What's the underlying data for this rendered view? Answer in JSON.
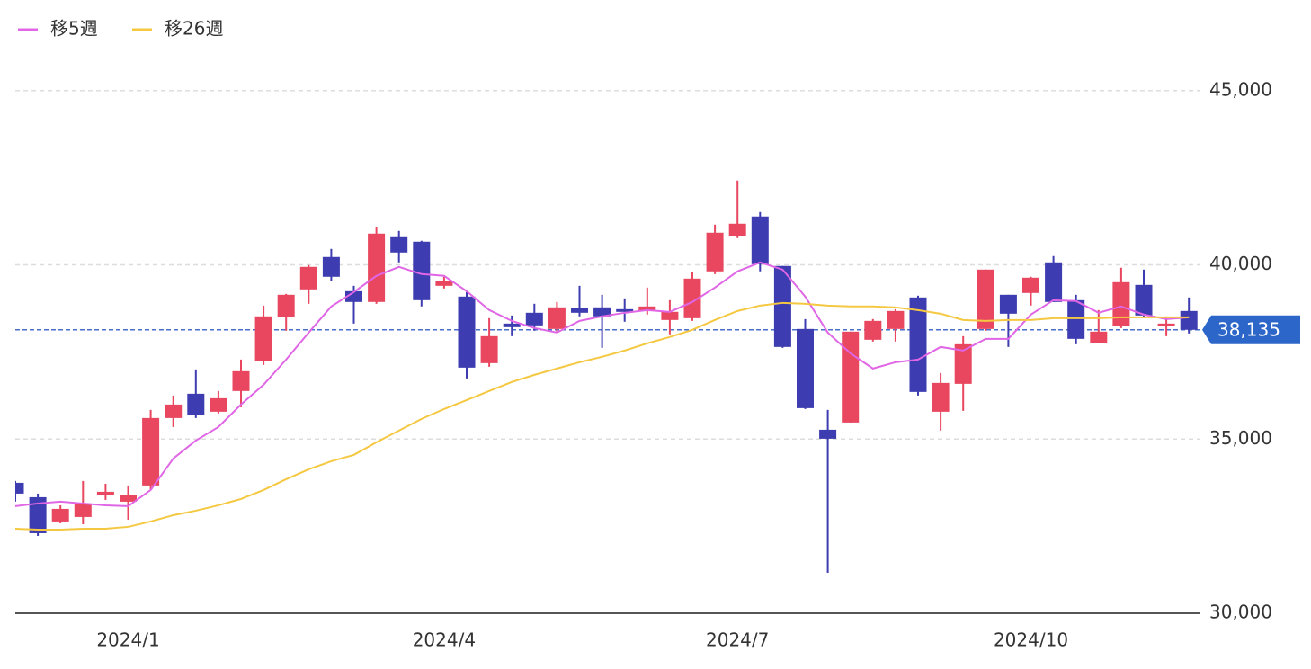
{
  "chart_data": {
    "type": "candlestick",
    "categories": [
      null,
      null,
      null,
      null,
      null,
      "2024/1",
      null,
      null,
      null,
      null,
      null,
      null,
      null,
      null,
      null,
      null,
      null,
      null,
      null,
      "2024/4",
      null,
      null,
      null,
      null,
      null,
      null,
      null,
      null,
      null,
      null,
      null,
      null,
      "2024/7",
      null,
      null,
      null,
      null,
      null,
      null,
      null,
      null,
      null,
      null,
      null,
      null,
      "2024/10",
      null,
      null,
      null,
      null,
      null,
      null,
      null
    ],
    "open": [
      33744,
      33331,
      32634,
      32763,
      33382,
      33202,
      33667,
      35603,
      36300,
      35784,
      36378,
      37230,
      38495,
      39295,
      40225,
      39243,
      38934,
      40793,
      40664,
      39398,
      39089,
      37178,
      38314,
      38624,
      38159,
      38753,
      38779,
      38727,
      38675,
      38417,
      38469,
      39812,
      40819,
      41387,
      39967,
      38159,
      35267,
      35474,
      37849,
      38159,
      39063,
      35784,
      36584,
      38159,
      39140,
      39192,
      40070,
      38985,
      37746,
      38237,
      39424,
      38237,
      38675
    ],
    "high": [
      33796,
      33434,
      33098,
      33796,
      33718,
      33667,
      35835,
      36248,
      36997,
      36378,
      37281,
      38830,
      39166,
      39992,
      40457,
      39398,
      41077,
      40974,
      40690,
      39657,
      39218,
      38469,
      38546,
      38882,
      38934,
      39398,
      39140,
      39037,
      39347,
      38985,
      39786,
      41154,
      42419,
      41516,
      39967,
      38443,
      35835,
      38082,
      38443,
      38727,
      39114,
      36894,
      37953,
      39863,
      39140,
      39657,
      40251,
      39140,
      38701,
      39915,
      39863,
      38520,
      39063
    ],
    "low": [
      33202,
      32220,
      32582,
      32556,
      33253,
      32685,
      33537,
      35345,
      35603,
      35732,
      35913,
      37126,
      38108,
      38882,
      39528,
      38314,
      38882,
      40070,
      38805,
      39321,
      36739,
      37075,
      37953,
      38108,
      38056,
      38521,
      37617,
      38366,
      38572,
      38004,
      38391,
      39734,
      40767,
      39812,
      37617,
      35861,
      31162,
      35474,
      37798,
      37798,
      36248,
      35241,
      35810,
      38108,
      37643,
      38830,
      38934,
      37720,
      37746,
      38185,
      38495,
      37953,
      38030
    ],
    "close": [
      33434,
      32298,
      32995,
      33150,
      33486,
      33382,
      35603,
      35990,
      35680,
      36171,
      36946,
      38521,
      39140,
      39941,
      39657,
      38934,
      40896,
      40354,
      38985,
      39528,
      37049,
      37953,
      38211,
      38262,
      38779,
      38624,
      38521,
      38650,
      38805,
      38650,
      39605,
      40922,
      41180,
      40018,
      37643,
      35887,
      35009,
      38082,
      38391,
      38675,
      36352,
      36610,
      37720,
      39863,
      38598,
      39631,
      38934,
      37875,
      38082,
      39502,
      38546,
      38314,
      38135
    ],
    "up_color": "#e8475f",
    "down_color": "#3d3cb0",
    "series": [
      {
        "name": "移5週",
        "color": "#e066e6",
        "values": [
          33073,
          33150,
          33202,
          33150,
          33098,
          33073,
          33537,
          34441,
          34957,
          35345,
          35990,
          36558,
          37281,
          38056,
          38805,
          39218,
          39683,
          39941,
          39734,
          39683,
          39243,
          38701,
          38391,
          38185,
          38056,
          38391,
          38521,
          38624,
          38701,
          38650,
          38934,
          39347,
          39812,
          40070,
          39863,
          39089,
          38056,
          37462,
          37023,
          37204,
          37281,
          37643,
          37539,
          37875,
          37875,
          38572,
          38985,
          38960,
          38624,
          38805,
          38572,
          38443,
          38495
        ]
      },
      {
        "name": "移26週",
        "color": "#f5c842",
        "values": [
          32427,
          32401,
          32401,
          32427,
          32427,
          32479,
          32634,
          32814,
          32943,
          33098,
          33279,
          33537,
          33847,
          34131,
          34364,
          34544,
          34906,
          35242,
          35577,
          35861,
          36119,
          36378,
          36636,
          36842,
          37023,
          37204,
          37359,
          37539,
          37746,
          37927,
          38133,
          38417,
          38675,
          38830,
          38908,
          38882,
          38830,
          38805,
          38805,
          38779,
          38701,
          38598,
          38417,
          38391,
          38417,
          38417,
          38469,
          38469,
          38469,
          38495,
          38495,
          38495,
          38495
        ]
      }
    ],
    "last_price": {
      "value": 38135,
      "label": "38,135"
    },
    "ylim": [
      30000,
      46000
    ],
    "yticks": [
      {
        "value": 30000,
        "label": "30,000"
      },
      {
        "value": 35000,
        "label": "35,000"
      },
      {
        "value": 40000,
        "label": "40,000"
      },
      {
        "value": 45000,
        "label": "45,000"
      }
    ],
    "grid": true
  }
}
